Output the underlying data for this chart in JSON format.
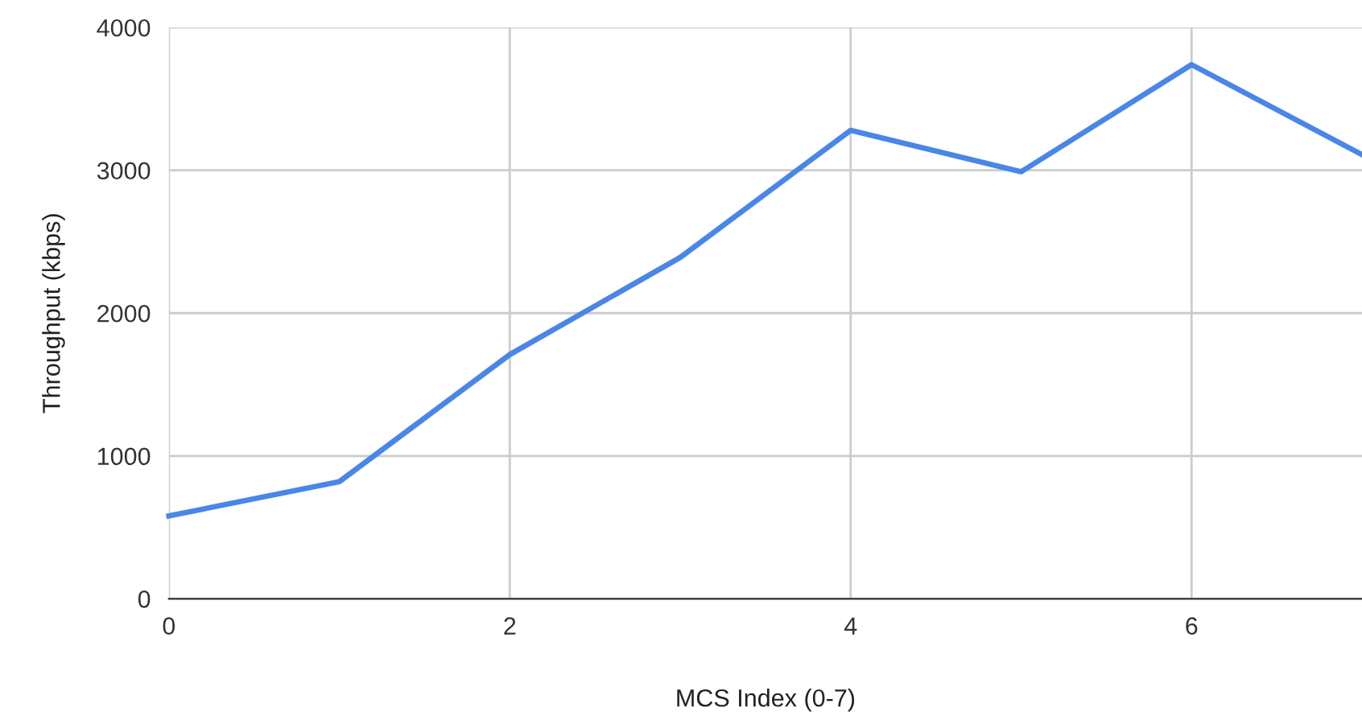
{
  "chart_data": {
    "type": "line",
    "xlabel": "MCS Index (0-7)",
    "ylabel": "Throughput (kbps)",
    "x": [
      0,
      1,
      2,
      3,
      4,
      5,
      6,
      7
    ],
    "series": [
      {
        "color": "#4a86e8",
        "values": [
          580,
          820,
          1710,
          2390,
          3280,
          2990,
          3740,
          3110
        ]
      }
    ],
    "xlim": [
      0,
      7
    ],
    "xticks": [
      0,
      2,
      4,
      6
    ],
    "ylim": [
      0,
      4000
    ],
    "yticks": [
      0,
      1000,
      2000,
      3000,
      4000
    ],
    "grid": true,
    "marker": "none",
    "line_style": "solid"
  }
}
